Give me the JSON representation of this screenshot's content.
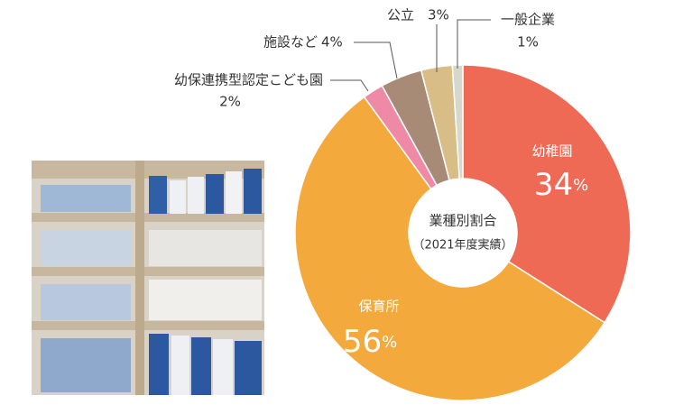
{
  "chart_data": {
    "type": "donut",
    "title": "業種別割合",
    "subtitle": "（2021年度実績）",
    "categories": [
      "幼稚園",
      "保育所",
      "幼保連携型認定こども園",
      "施設など",
      "公立",
      "一般企業"
    ],
    "values": [
      34,
      56,
      2,
      4,
      3,
      1
    ],
    "value_labels": [
      "34%",
      "56%",
      "2%",
      "4%",
      "3%",
      "1%"
    ],
    "colors": [
      "#ef6a55",
      "#f3a93c",
      "#ee8aa5",
      "#a78b77",
      "#d9bd86",
      "#d6d7cd"
    ]
  }
}
